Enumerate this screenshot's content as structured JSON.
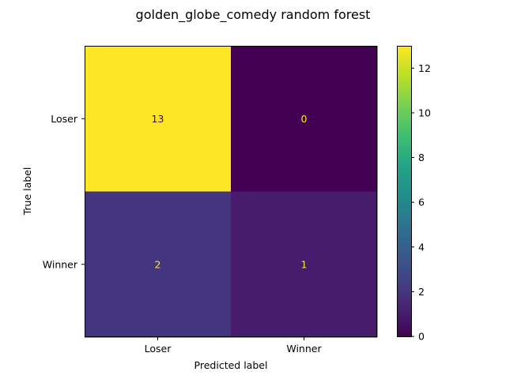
{
  "chart_data": {
    "type": "heatmap",
    "title": "golden_globe_comedy random forest",
    "xlabel": "Predicted label",
    "ylabel": "True label",
    "x_categories": [
      "Loser",
      "Winner"
    ],
    "y_categories": [
      "Loser",
      "Winner"
    ],
    "values": [
      [
        13,
        0
      ],
      [
        2,
        1
      ]
    ],
    "colormap": "viridis",
    "colorbar": {
      "range": [
        0,
        13
      ],
      "ticks": [
        0,
        2,
        4,
        6,
        8,
        10,
        12
      ]
    },
    "grid": false
  }
}
